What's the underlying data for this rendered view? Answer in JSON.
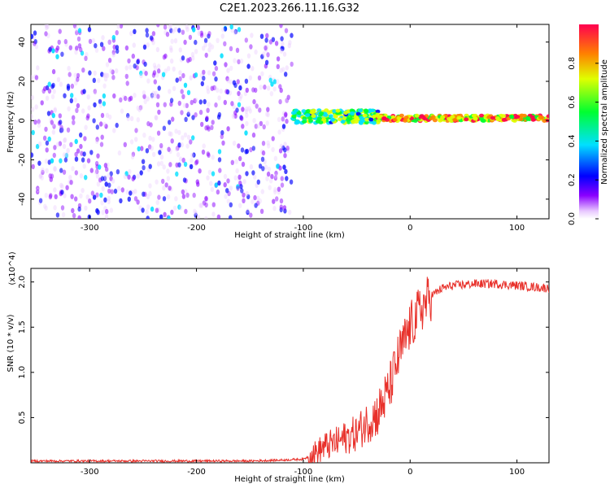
{
  "title": "C2E1.2023.266.11.16.G32",
  "chart_data": [
    {
      "type": "heatmap",
      "xlabel": "Height of straight line (km)",
      "ylabel": "Frequency (Hz)",
      "xlim": [
        -355,
        130
      ],
      "ylim": [
        -50,
        49
      ],
      "x_ticks": [
        -300,
        -200,
        -100,
        0,
        100
      ],
      "y_ticks": [
        -40,
        -20,
        0,
        20,
        40
      ],
      "colorbar": {
        "label": "Normalized spectral amplitude",
        "range": [
          0,
          1
        ],
        "ticks": [
          "0.0",
          "0.2",
          "0.4",
          "0.6",
          "0.8"
        ],
        "colormap": [
          "#ffffff",
          "#8a00ff",
          "#0000ff",
          "#00e0ff",
          "#00ff30",
          "#e0ff00",
          "#ff8000",
          "#ff0050"
        ]
      },
      "regions": [
        {
          "x_range": [
            -355,
            -110
          ],
          "description_amplitude": [
            0.0,
            0.3
          ],
          "freq_range": [
            -50,
            49
          ]
        },
        {
          "x_range": [
            -110,
            -30
          ],
          "description_amplitude": [
            0.2,
            0.7
          ],
          "freq_range": [
            -5,
            8
          ]
        },
        {
          "x_range": [
            -30,
            130
          ],
          "description_amplitude": [
            0.4,
            0.95
          ],
          "freq_range": [
            -2,
            5
          ]
        }
      ]
    },
    {
      "type": "line",
      "xlabel": "Height of straight line (km)",
      "ylabel": "SNR (10 * v/v)",
      "y_multiplier": "(x10^4)",
      "xlim": [
        -355,
        130
      ],
      "ylim": [
        0,
        2.15
      ],
      "x_ticks": [
        -300,
        -200,
        -100,
        0,
        100
      ],
      "y_ticks": [
        0.5,
        1.0,
        1.5,
        2.0
      ],
      "color": "#e8302a",
      "x": [
        -355,
        -300,
        -250,
        -200,
        -150,
        -120,
        -100,
        -90,
        -80,
        -70,
        -60,
        -50,
        -40,
        -30,
        -20,
        -15,
        -10,
        -5,
        0,
        10,
        20,
        30,
        40,
        50,
        60,
        70,
        80,
        90,
        100,
        110,
        120,
        130
      ],
      "values": [
        0.02,
        0.02,
        0.02,
        0.02,
        0.02,
        0.03,
        0.04,
        0.1,
        0.18,
        0.22,
        0.28,
        0.33,
        0.45,
        0.55,
        0.8,
        1.0,
        1.2,
        1.35,
        1.5,
        1.7,
        1.85,
        1.93,
        1.96,
        1.97,
        1.98,
        1.98,
        1.98,
        1.97,
        1.96,
        1.95,
        1.94,
        1.93
      ]
    }
  ]
}
